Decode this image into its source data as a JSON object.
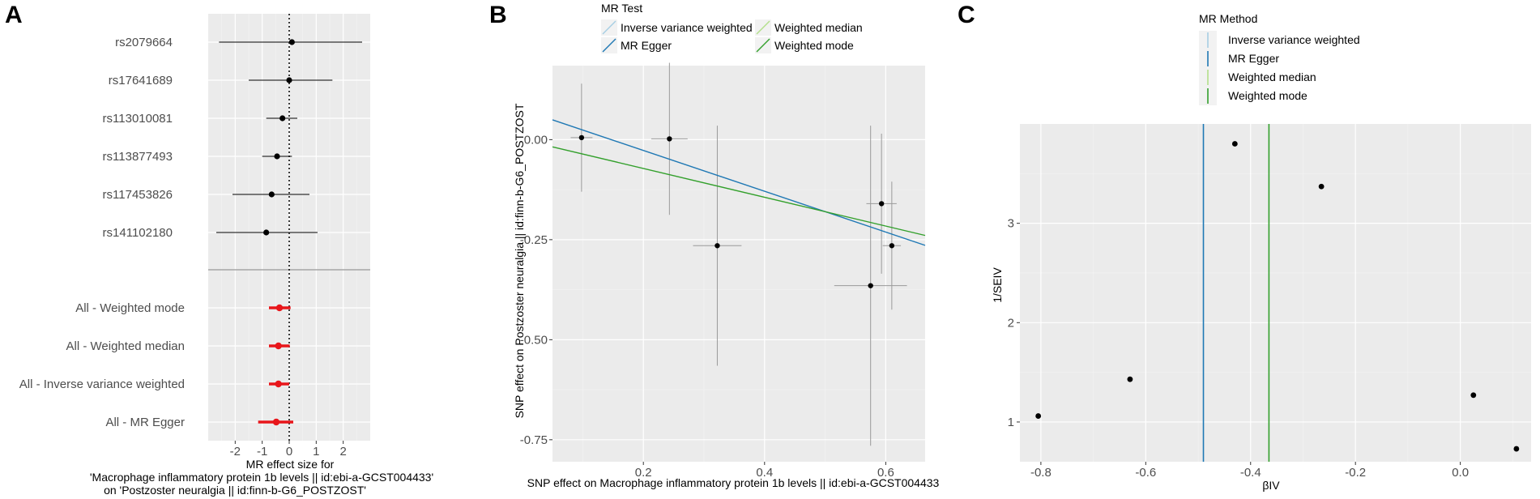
{
  "panels": {
    "A": {
      "letter": "A"
    },
    "B": {
      "letter": "B"
    },
    "C": {
      "letter": "C"
    }
  },
  "chart_data": [
    {
      "type": "forest",
      "panel": "A",
      "xlabel_lines": [
        "MR effect size for",
        "'Macrophage inflammatory protein 1b levels || id:ebi-a-GCST004433'",
        "on 'Postzoster neuralgia || id:finn-b-G6_POSTZOST'"
      ],
      "xlim": [
        -3.0,
        3.0
      ],
      "xticks": [
        -2,
        -1,
        0,
        1,
        2
      ],
      "reference_line": 0,
      "snps": [
        {
          "label": "rs2079664",
          "est": 0.1,
          "lo": -2.6,
          "hi": 2.7
        },
        {
          "label": "rs17641689",
          "est": 0.0,
          "lo": -1.5,
          "hi": 1.6
        },
        {
          "label": "rs113010081",
          "est": -0.25,
          "lo": -0.85,
          "hi": 0.3
        },
        {
          "label": "rs113877493",
          "est": -0.45,
          "lo": -1.0,
          "hi": 0.1
        },
        {
          "label": "rs117453826",
          "est": -0.65,
          "lo": -2.1,
          "hi": 0.75
        },
        {
          "label": "rs141102180",
          "est": -0.85,
          "lo": -2.7,
          "hi": 1.05
        }
      ],
      "methods": [
        {
          "label": "All - Weighted mode",
          "est": -0.36,
          "lo": -0.75,
          "hi": 0.05
        },
        {
          "label": "All - Weighted median",
          "est": -0.4,
          "lo": -0.75,
          "hi": 0.02
        },
        {
          "label": "All - Inverse variance weighted",
          "est": -0.4,
          "lo": -0.75,
          "hi": 0.0
        },
        {
          "label": "All - MR Egger",
          "est": -0.48,
          "lo": -1.15,
          "hi": 0.15
        }
      ],
      "colors": {
        "snp": "#000000",
        "method": "#e8161b",
        "divider": "#a6a6a6"
      }
    },
    {
      "type": "scatter",
      "panel": "B",
      "legend_title": "MR Test",
      "legend": [
        {
          "label": "Inverse variance weighted",
          "color": "#a6cee3"
        },
        {
          "label": "MR Egger",
          "color": "#1f78b4"
        },
        {
          "label": "Weighted median",
          "color": "#b2df8a"
        },
        {
          "label": "Weighted mode",
          "color": "#33a02c"
        }
      ],
      "xlabel": "SNP effect on Macrophage inflammatory protein 1b levels || id:ebi-a-GCST004433",
      "ylabel": "SNP effect on Postzoster neuralgia || id:finn-b-G6_POSTZOST",
      "xlim": [
        0.05,
        0.665
      ],
      "ylim": [
        -0.805,
        0.185
      ],
      "xticks": [
        {
          "v": 0.2,
          "label": "0.2"
        },
        {
          "v": 0.4,
          "label": "0.4"
        },
        {
          "v": 0.6,
          "label": "0.6"
        }
      ],
      "yticks": [
        {
          "v": 0.0,
          "label": "0.00"
        },
        {
          "v": -0.25,
          "label": "-0.25"
        },
        {
          "v": -0.5,
          "label": "-0.50"
        },
        {
          "v": -0.75,
          "label": "-0.75"
        }
      ],
      "points": [
        {
          "x": 0.098,
          "y": 0.005,
          "xse": 0.018,
          "yse": 0.135
        },
        {
          "x": 0.243,
          "y": 0.002,
          "xse": 0.03,
          "yse": 0.19
        },
        {
          "x": 0.322,
          "y": -0.265,
          "xse": 0.04,
          "yse": 0.3
        },
        {
          "x": 0.575,
          "y": -0.365,
          "xse": 0.06,
          "yse": 0.4
        },
        {
          "x": 0.593,
          "y": -0.16,
          "xse": 0.025,
          "yse": 0.175
        },
        {
          "x": 0.61,
          "y": -0.265,
          "xse": 0.015,
          "yse": 0.16
        }
      ],
      "lines": [
        {
          "name": "MR Egger",
          "intercept": 0.075,
          "slope": -0.51,
          "color": "#1f78b4"
        },
        {
          "name": "Weighted mode",
          "intercept": 0.0,
          "slope": -0.36,
          "color": "#33a02c"
        }
      ]
    },
    {
      "type": "funnel",
      "panel": "C",
      "legend_title": "MR Method",
      "legend": [
        {
          "label": "Inverse variance weighted",
          "color": "#a6cee3"
        },
        {
          "label": "MR Egger",
          "color": "#1f78b4"
        },
        {
          "label": "Weighted median",
          "color": "#b2df8a"
        },
        {
          "label": "Weighted mode",
          "color": "#33a02c"
        }
      ],
      "xlabel": "βIV",
      "ylabel": "1/SEIV",
      "xlim": [
        -0.84,
        0.135
      ],
      "ylim": [
        0.6,
        4.0
      ],
      "xticks": [
        {
          "v": -0.8,
          "label": "-0.8"
        },
        {
          "v": -0.6,
          "label": "-0.6"
        },
        {
          "v": -0.4,
          "label": "-0.4"
        },
        {
          "v": -0.2,
          "label": "-0.2"
        },
        {
          "v": 0.0,
          "label": "0.0"
        }
      ],
      "yticks": [
        {
          "v": 1,
          "label": "1"
        },
        {
          "v": 2,
          "label": "2"
        },
        {
          "v": 3,
          "label": "3"
        }
      ],
      "points": [
        {
          "x": -0.805,
          "y": 1.06
        },
        {
          "x": -0.63,
          "y": 1.43
        },
        {
          "x": -0.43,
          "y": 3.8
        },
        {
          "x": -0.265,
          "y": 3.37
        },
        {
          "x": 0.025,
          "y": 1.27
        },
        {
          "x": 0.107,
          "y": 0.73
        }
      ],
      "vlines": [
        {
          "name": "MR Egger",
          "x": -0.49,
          "color": "#1f78b4"
        },
        {
          "name": "Weighted mode",
          "x": -0.365,
          "color": "#33a02c"
        }
      ]
    }
  ]
}
